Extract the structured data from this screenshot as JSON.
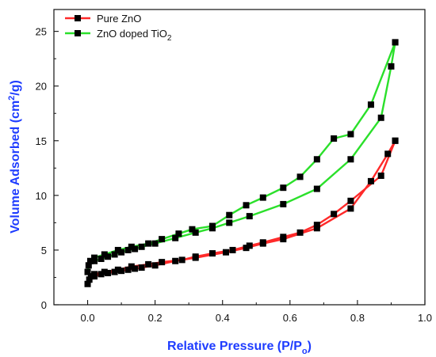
{
  "chart_data": {
    "type": "line",
    "title": "",
    "xlabel": {
      "main": "Relative Pressure (P/P",
      "sub": "o",
      "tail": ")"
    },
    "ylabel": {
      "prefix": "Volume Adsorbed (cm",
      "sup": "2",
      "suffix": "/g)"
    },
    "xlim": [
      -0.1,
      1.0
    ],
    "ylim": [
      0,
      27
    ],
    "x_ticks": [
      0.0,
      0.2,
      0.4,
      0.6,
      0.8,
      1.0
    ],
    "x_tick_labels": [
      "0.0",
      "0.2",
      "0.4",
      "0.6",
      "0.8",
      "1.0"
    ],
    "y_ticks": [
      0,
      5,
      10,
      15,
      20,
      25
    ],
    "y_tick_labels": [
      "0",
      "5",
      "10",
      "15",
      "20",
      "25"
    ],
    "grid": false,
    "legend": {
      "position": "top-left",
      "entries": [
        {
          "series": "pure",
          "text": "Pure ZnO"
        },
        {
          "series": "doped",
          "text": "ZnO doped TiO",
          "sub": "2"
        }
      ]
    },
    "series": [
      {
        "key": "pure",
        "name": "Pure ZnO",
        "color": "#ff2a2a",
        "marker_color": "#000000",
        "adsorption": [
          {
            "x": 0.0,
            "y": 1.9
          },
          {
            "x": 0.005,
            "y": 2.3
          },
          {
            "x": 0.01,
            "y": 2.6
          },
          {
            "x": 0.02,
            "y": 2.6
          },
          {
            "x": 0.04,
            "y": 2.8
          },
          {
            "x": 0.06,
            "y": 2.9
          },
          {
            "x": 0.08,
            "y": 3.0
          },
          {
            "x": 0.1,
            "y": 3.1
          },
          {
            "x": 0.12,
            "y": 3.2
          },
          {
            "x": 0.14,
            "y": 3.3
          },
          {
            "x": 0.16,
            "y": 3.4
          },
          {
            "x": 0.2,
            "y": 3.6
          },
          {
            "x": 0.26,
            "y": 4.0
          },
          {
            "x": 0.32,
            "y": 4.3
          },
          {
            "x": 0.41,
            "y": 4.8
          },
          {
            "x": 0.47,
            "y": 5.2
          },
          {
            "x": 0.52,
            "y": 5.6
          },
          {
            "x": 0.58,
            "y": 6.0
          },
          {
            "x": 0.68,
            "y": 7.0
          },
          {
            "x": 0.78,
            "y": 8.8
          },
          {
            "x": 0.84,
            "y": 11.3
          },
          {
            "x": 0.89,
            "y": 13.8
          },
          {
            "x": 0.912,
            "y": 15.0
          }
        ],
        "desorption": [
          {
            "x": 0.912,
            "y": 15.0
          },
          {
            "x": 0.87,
            "y": 11.8
          },
          {
            "x": 0.78,
            "y": 9.5
          },
          {
            "x": 0.73,
            "y": 8.3
          },
          {
            "x": 0.68,
            "y": 7.3
          },
          {
            "x": 0.63,
            "y": 6.6
          },
          {
            "x": 0.58,
            "y": 6.2
          },
          {
            "x": 0.52,
            "y": 5.7
          },
          {
            "x": 0.48,
            "y": 5.4
          },
          {
            "x": 0.43,
            "y": 5.0
          },
          {
            "x": 0.37,
            "y": 4.7
          },
          {
            "x": 0.32,
            "y": 4.4
          },
          {
            "x": 0.28,
            "y": 4.1
          },
          {
            "x": 0.22,
            "y": 3.9
          },
          {
            "x": 0.18,
            "y": 3.7
          },
          {
            "x": 0.13,
            "y": 3.5
          },
          {
            "x": 0.09,
            "y": 3.2
          },
          {
            "x": 0.05,
            "y": 3.0
          },
          {
            "x": 0.02,
            "y": 2.8
          }
        ]
      },
      {
        "key": "doped",
        "name": "ZnO doped TiO2",
        "color": "#2be02b",
        "marker_color": "#000000",
        "adsorption": [
          {
            "x": 0.0,
            "y": 3.0
          },
          {
            "x": 0.003,
            "y": 3.6
          },
          {
            "x": 0.008,
            "y": 4.0
          },
          {
            "x": 0.02,
            "y": 4.0
          },
          {
            "x": 0.04,
            "y": 4.2
          },
          {
            "x": 0.06,
            "y": 4.4
          },
          {
            "x": 0.08,
            "y": 4.6
          },
          {
            "x": 0.1,
            "y": 4.8
          },
          {
            "x": 0.12,
            "y": 5.0
          },
          {
            "x": 0.14,
            "y": 5.1
          },
          {
            "x": 0.16,
            "y": 5.3
          },
          {
            "x": 0.2,
            "y": 5.6
          },
          {
            "x": 0.26,
            "y": 6.1
          },
          {
            "x": 0.32,
            "y": 6.6
          },
          {
            "x": 0.37,
            "y": 7.0
          },
          {
            "x": 0.42,
            "y": 7.5
          },
          {
            "x": 0.48,
            "y": 8.1
          },
          {
            "x": 0.58,
            "y": 9.2
          },
          {
            "x": 0.68,
            "y": 10.6
          },
          {
            "x": 0.78,
            "y": 13.3
          },
          {
            "x": 0.87,
            "y": 17.1
          },
          {
            "x": 0.9,
            "y": 21.8
          },
          {
            "x": 0.912,
            "y": 24.0
          }
        ],
        "desorption": [
          {
            "x": 0.912,
            "y": 24.0
          },
          {
            "x": 0.84,
            "y": 18.3
          },
          {
            "x": 0.78,
            "y": 15.6
          },
          {
            "x": 0.73,
            "y": 15.2
          },
          {
            "x": 0.68,
            "y": 13.3
          },
          {
            "x": 0.63,
            "y": 11.7
          },
          {
            "x": 0.58,
            "y": 10.7
          },
          {
            "x": 0.52,
            "y": 9.8
          },
          {
            "x": 0.47,
            "y": 9.1
          },
          {
            "x": 0.42,
            "y": 8.2
          },
          {
            "x": 0.37,
            "y": 7.2
          },
          {
            "x": 0.31,
            "y": 6.9
          },
          {
            "x": 0.27,
            "y": 6.5
          },
          {
            "x": 0.22,
            "y": 6.0
          },
          {
            "x": 0.18,
            "y": 5.6
          },
          {
            "x": 0.13,
            "y": 5.3
          },
          {
            "x": 0.09,
            "y": 5.0
          },
          {
            "x": 0.05,
            "y": 4.6
          },
          {
            "x": 0.02,
            "y": 4.3
          }
        ]
      }
    ]
  }
}
